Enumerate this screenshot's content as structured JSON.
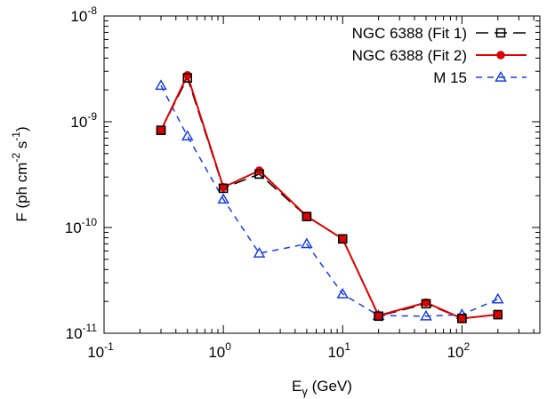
{
  "chart_data": {
    "type": "line",
    "xscale": "log",
    "yscale": "log",
    "xlim": [
      0.1,
      450
    ],
    "ylim": [
      1e-11,
      1e-08
    ],
    "xlabel": {
      "main": "E",
      "sub": "γ",
      "rest": " (GeV)"
    },
    "ylabel": {
      "main": "F (ph cm",
      "sup1": "-2",
      "mid": " s",
      "sup2": "-1",
      "end": ")"
    },
    "xticks": [
      {
        "value": 0.1,
        "base": "10",
        "exp": "-1"
      },
      {
        "value": 1,
        "base": "10",
        "exp": "0"
      },
      {
        "value": 10,
        "base": "10",
        "exp": "1"
      },
      {
        "value": 100,
        "base": "10",
        "exp": "2"
      }
    ],
    "yticks": [
      {
        "value": 1e-11,
        "base": "10",
        "exp": "-11"
      },
      {
        "value": 1e-10,
        "base": "10",
        "exp": "-10"
      },
      {
        "value": 1e-09,
        "base": "10",
        "exp": "-9"
      },
      {
        "value": 1e-08,
        "base": "10",
        "exp": "-8"
      }
    ],
    "legend_position": "top-right",
    "series": [
      {
        "name": "NGC 6388 (Fit 1)",
        "color": "#000000",
        "line_style": "long-dash",
        "marker": "open-square",
        "x": [
          0.3,
          0.5,
          1,
          2,
          5,
          10,
          20,
          50,
          100,
          200
        ],
        "y": [
          8.3e-10,
          2.6e-09,
          2.35e-10,
          3.2e-10,
          1.27e-10,
          7.8e-11,
          1.45e-11,
          1.9e-11,
          1.38e-11,
          1.5e-11
        ]
      },
      {
        "name": "NGC 6388 (Fit 2)",
        "color": "#e00000",
        "line_style": "solid",
        "marker": "filled-circle",
        "x": [
          0.3,
          0.5,
          1,
          2,
          5,
          10,
          20,
          50,
          100,
          200
        ],
        "y": [
          8.3e-10,
          2.75e-09,
          2.4e-10,
          3.45e-10,
          1.28e-10,
          7.8e-11,
          1.47e-11,
          1.95e-11,
          1.38e-11,
          1.5e-11
        ]
      },
      {
        "name": "M 15",
        "color": "#1a3ee8",
        "line_style": "short-dash",
        "marker": "open-triangle",
        "x": [
          0.3,
          0.5,
          1,
          2,
          5,
          10,
          20,
          50,
          100,
          200
        ],
        "y": [
          2.2e-09,
          7.3e-10,
          1.85e-10,
          5.7e-11,
          7e-11,
          2.35e-11,
          1.47e-11,
          1.45e-11,
          1.5e-11,
          2.1e-11
        ]
      }
    ]
  }
}
